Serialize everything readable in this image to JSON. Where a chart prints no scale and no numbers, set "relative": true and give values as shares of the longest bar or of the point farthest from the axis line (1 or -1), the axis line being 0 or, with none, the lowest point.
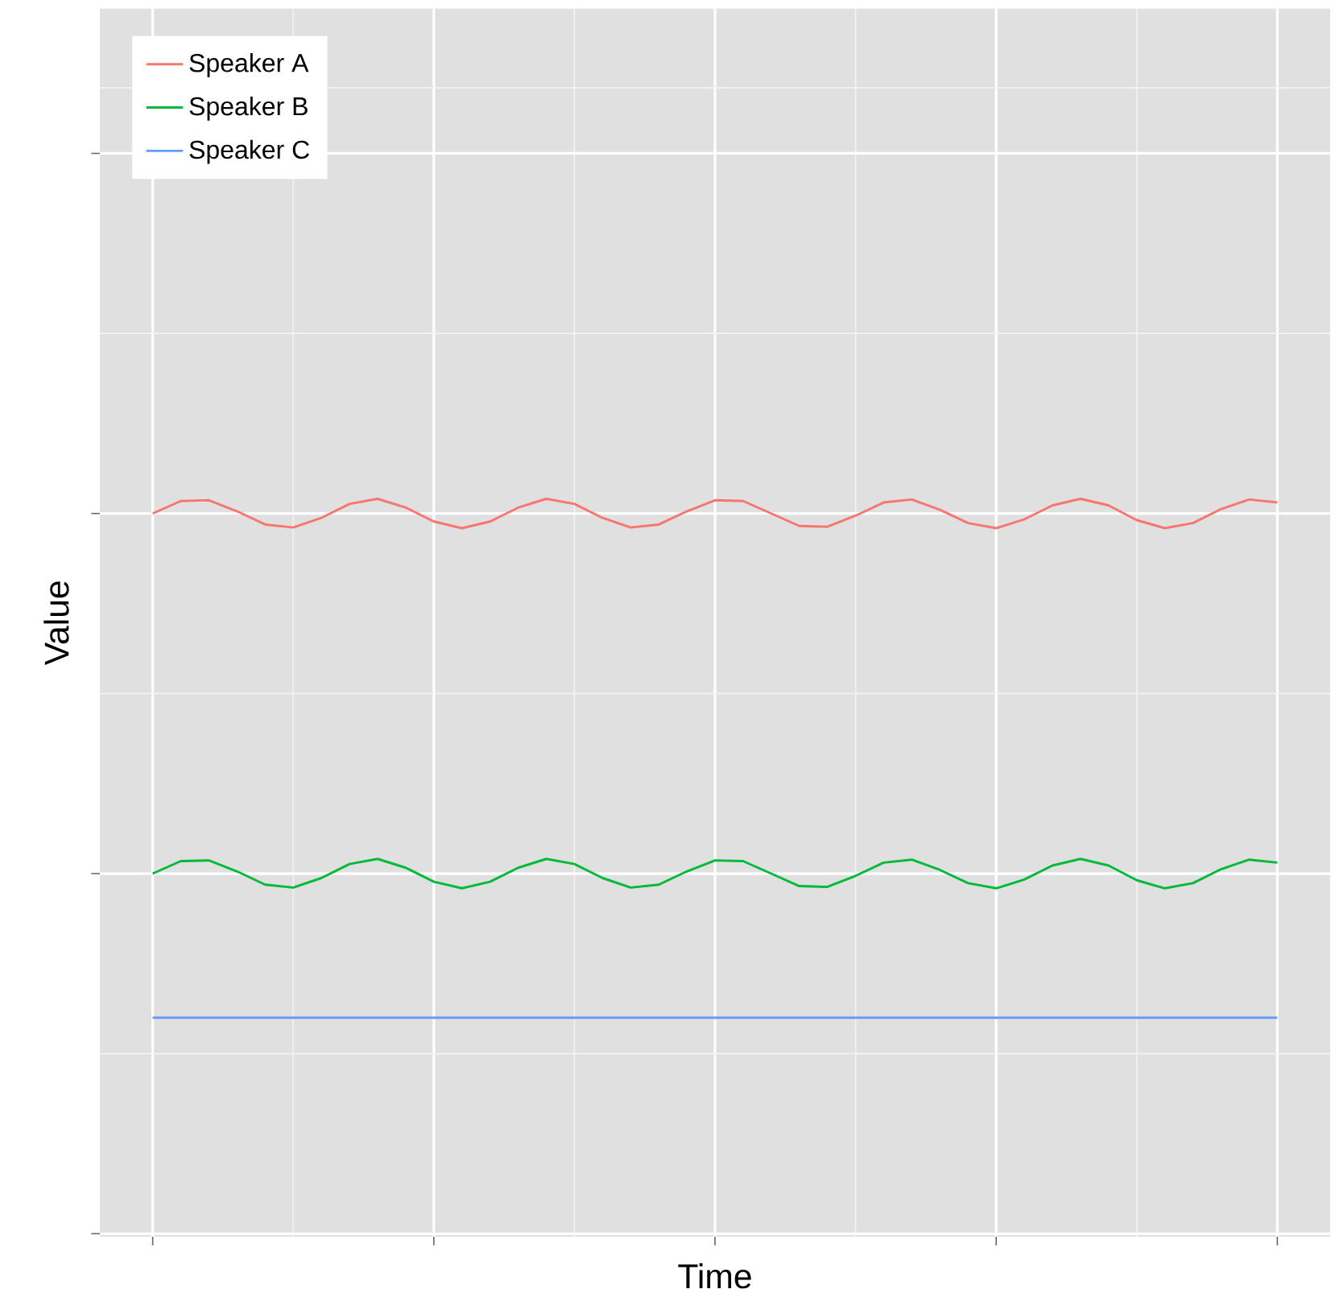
{
  "chart_data": {
    "type": "line",
    "xlabel": "Time",
    "ylabel": "Value",
    "relative": true,
    "grid": true,
    "legend": "top left",
    "categories": [
      null,
      null,
      null,
      null,
      null,
      null,
      null,
      null,
      null,
      null,
      null,
      null,
      null,
      null,
      null,
      null,
      null,
      null,
      null,
      null,
      null,
      null,
      null,
      null,
      null,
      null,
      null,
      null,
      null,
      null,
      null,
      null,
      null,
      null,
      null,
      null,
      null,
      null,
      null,
      null,
      null
    ],
    "series": [
      {
        "name": "Speaker A",
        "color": "#f8766d",
        "values": [
          0.98,
          0.997,
          0.998,
          0.983,
          0.965,
          0.961,
          0.974,
          0.993,
          1.0,
          0.988,
          0.969,
          0.96,
          0.969,
          0.988,
          1.0,
          0.993,
          0.974,
          0.961,
          0.965,
          0.983,
          0.998,
          0.997,
          0.98,
          0.963,
          0.962,
          0.977,
          0.995,
          0.999,
          0.985,
          0.967,
          0.96,
          0.972,
          0.991,
          1.0,
          0.991,
          0.971,
          0.96,
          0.967,
          0.986,
          0.999,
          0.995
        ]
      },
      {
        "name": "Speaker B",
        "color": "#00ba38",
        "values": [
          0.49,
          0.507,
          0.508,
          0.493,
          0.475,
          0.471,
          0.484,
          0.503,
          0.51,
          0.498,
          0.479,
          0.47,
          0.479,
          0.498,
          0.51,
          0.503,
          0.484,
          0.471,
          0.475,
          0.493,
          0.508,
          0.507,
          0.49,
          0.473,
          0.472,
          0.487,
          0.505,
          0.509,
          0.495,
          0.477,
          0.47,
          0.482,
          0.501,
          0.51,
          0.501,
          0.481,
          0.47,
          0.477,
          0.496,
          0.509,
          0.505
        ]
      },
      {
        "name": "Speaker C",
        "color": "#619cff",
        "values": [
          0.294,
          0.294,
          0.294,
          0.294,
          0.294,
          0.294,
          0.294,
          0.294,
          0.294,
          0.294,
          0.294,
          0.294,
          0.294,
          0.294,
          0.294,
          0.294,
          0.294,
          0.294,
          0.294,
          0.294,
          0.294,
          0.294,
          0.294,
          0.294,
          0.294,
          0.294,
          0.294,
          0.294,
          0.294,
          0.294,
          0.294,
          0.294,
          0.294,
          0.294,
          0.294,
          0.294,
          0.294,
          0.294,
          0.294,
          0.294,
          0.294
        ]
      }
    ]
  }
}
